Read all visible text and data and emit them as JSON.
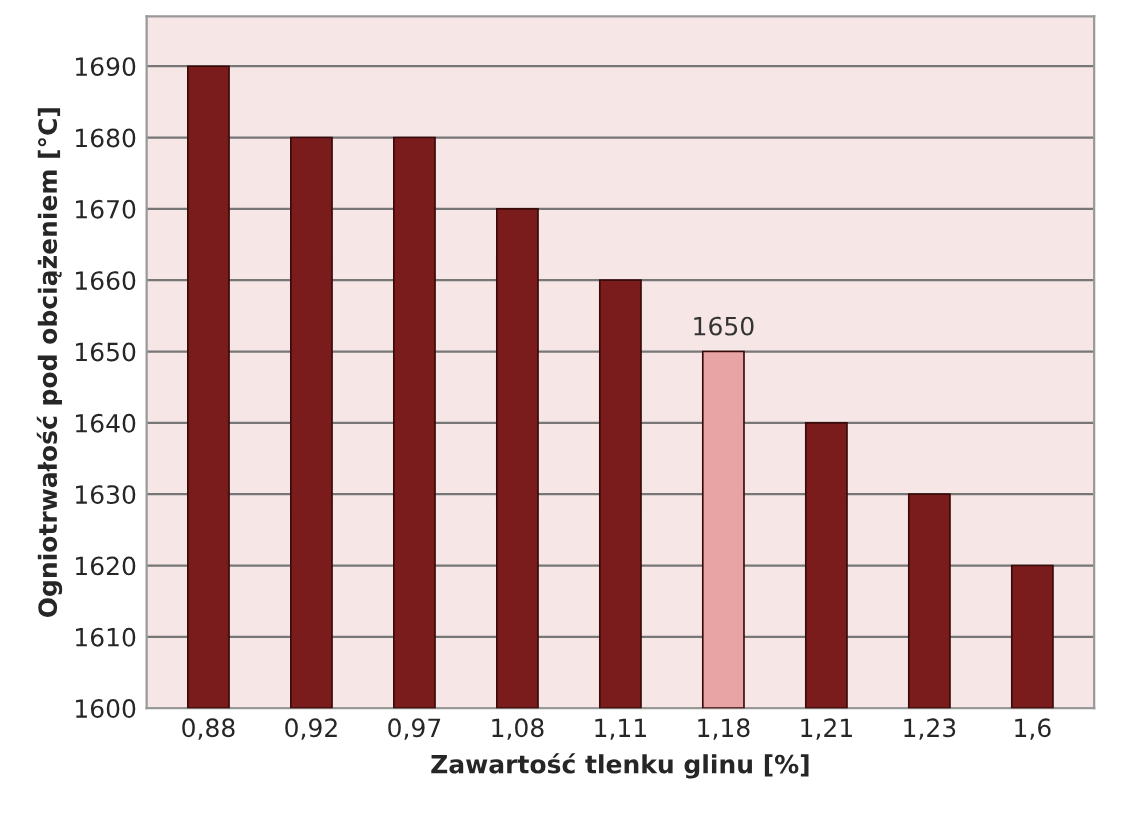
{
  "chart_data": {
    "type": "bar",
    "xlabel": "Zawartość tlenku glinu [%]",
    "ylabel": "Ogniotrwałość pod obciążeniem [°C]",
    "categories": [
      "0,88",
      "0,92",
      "0,97",
      "1,08",
      "1,11",
      "1,18",
      "1,21",
      "1,23",
      "1,6"
    ],
    "values": [
      1690,
      1680,
      1680,
      1670,
      1660,
      1650,
      1640,
      1630,
      1620
    ],
    "colors": [
      "#7a1c1c",
      "#7a1c1c",
      "#7a1c1c",
      "#7a1c1c",
      "#7a1c1c",
      "#e8a4a4",
      "#7a1c1c",
      "#7a1c1c",
      "#7a1c1c"
    ],
    "value_labels": [
      null,
      null,
      null,
      null,
      null,
      "1650",
      null,
      null,
      null
    ],
    "ylim": [
      1600,
      1697
    ],
    "yticks": [
      1600,
      1610,
      1620,
      1630,
      1640,
      1650,
      1660,
      1670,
      1680,
      1690
    ],
    "grid": "y"
  }
}
